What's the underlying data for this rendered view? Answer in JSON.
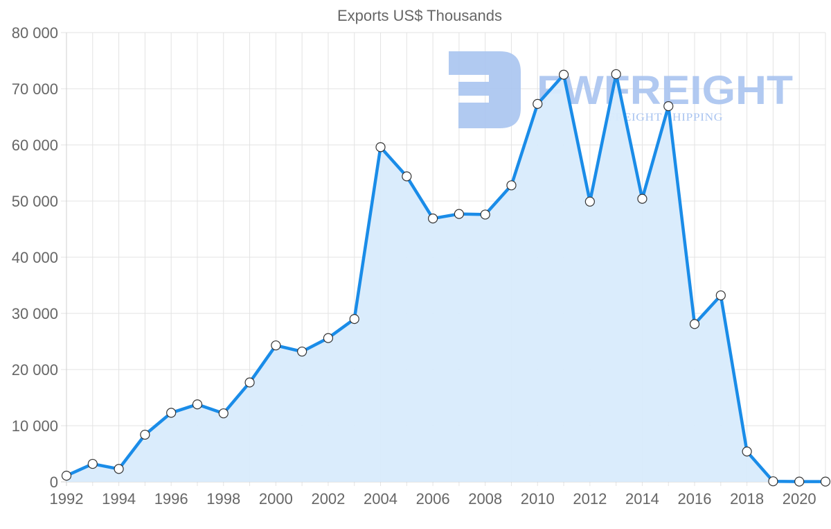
{
  "chart_data": {
    "type": "area",
    "title": "Exports US$ Thousands",
    "xlabel": "",
    "ylabel": "",
    "ylim": [
      0,
      80000
    ],
    "grid": true,
    "legend": null,
    "y_ticks": [
      "0",
      "10 000",
      "20 000",
      "30 000",
      "40 000",
      "50 000",
      "60 000",
      "70 000",
      "80 000"
    ],
    "x_ticks": [
      "1992",
      "1994",
      "1996",
      "1998",
      "2000",
      "2002",
      "2004",
      "2006",
      "2008",
      "2010",
      "2012",
      "2014",
      "2016",
      "2018",
      "2020"
    ],
    "categories": [
      "1992",
      "1993",
      "1994",
      "1995",
      "1996",
      "1997",
      "1998",
      "1999",
      "2000",
      "2001",
      "2002",
      "2003",
      "2004",
      "2005",
      "2006",
      "2007",
      "2008",
      "2009",
      "2010",
      "2011",
      "2012",
      "2013",
      "2014",
      "2015",
      "2016",
      "2017",
      "2018",
      "2019",
      "2020",
      "2021"
    ],
    "series": [
      {
        "name": "Exports US$ Thousands",
        "color": "#1a8ce8",
        "fill": "#d8ebfc",
        "values": [
          1100,
          3200,
          2300,
          8400,
          12300,
          13800,
          12200,
          17700,
          24300,
          23200,
          25600,
          29000,
          59600,
          54400,
          46900,
          47700,
          47600,
          52800,
          67300,
          72500,
          49900,
          72600,
          50400,
          66900,
          28100,
          33200,
          5400,
          100,
          50,
          50
        ]
      }
    ]
  },
  "watermark": {
    "brand": "FWFREIGHT",
    "tagline": "FREIGHT SHIPPING",
    "color": "#a9c4f0"
  }
}
